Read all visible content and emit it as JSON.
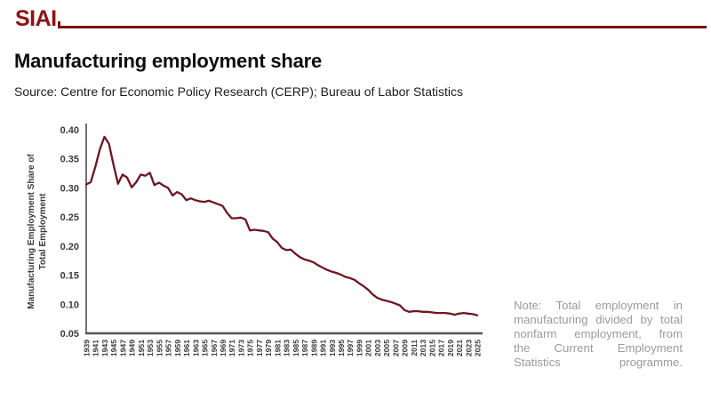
{
  "header": {
    "logo_text": "SIAI",
    "brand_color": "#8e1313",
    "rule_color": "#7a1111"
  },
  "title": "Manufacturing employment share",
  "source": "Source: Centre for Economic Policy Research (CERP); Bureau of Labor Statistics",
  "note": {
    "color": "#9b9b9b",
    "lines": [
      "Note: Total employment in",
      "manufacturing divided by total",
      "nonfarm employment, from",
      "the Current Employment",
      "Statistics programme."
    ]
  },
  "chart_data": {
    "type": "line",
    "title": "",
    "xlabel": "",
    "ylabel": "Manufacturing Employment Share of Total Employment",
    "ylabel_lines": [
      "Manufacturing Employment Share of",
      "Total Employment"
    ],
    "line_color": "#6e1622",
    "axis_color": "#4d4d4d",
    "grid": false,
    "legend": "none",
    "x_range": [
      1939,
      2025
    ],
    "ylim": [
      0.05,
      0.4
    ],
    "yticks": [
      "0.40",
      "0.35",
      "0.30",
      "0.25",
      "0.20",
      "0.15",
      "0.10",
      "0.05"
    ],
    "xticks": [
      1939,
      1941,
      1943,
      1945,
      1947,
      1949,
      1951,
      1953,
      1955,
      1957,
      1959,
      1961,
      1963,
      1965,
      1967,
      1969,
      1971,
      1973,
      1975,
      1977,
      1979,
      1981,
      1983,
      1985,
      1987,
      1989,
      1991,
      1993,
      1995,
      1997,
      1999,
      2001,
      2003,
      2005,
      2007,
      2009,
      2011,
      2013,
      2015,
      2017,
      2019,
      2021,
      2023,
      2025
    ],
    "x": [
      1939,
      1940,
      1941,
      1942,
      1943,
      1944,
      1945,
      1946,
      1947,
      1948,
      1949,
      1950,
      1951,
      1952,
      1953,
      1954,
      1955,
      1956,
      1957,
      1958,
      1959,
      1960,
      1961,
      1962,
      1963,
      1964,
      1965,
      1966,
      1967,
      1968,
      1969,
      1970,
      1971,
      1972,
      1973,
      1974,
      1975,
      1976,
      1977,
      1978,
      1979,
      1980,
      1981,
      1982,
      1983,
      1984,
      1985,
      1986,
      1987,
      1988,
      1989,
      1990,
      1991,
      1992,
      1993,
      1994,
      1995,
      1996,
      1997,
      1998,
      1999,
      2000,
      2001,
      2002,
      2003,
      2004,
      2005,
      2006,
      2007,
      2008,
      2009,
      2010,
      2011,
      2012,
      2013,
      2014,
      2015,
      2016,
      2017,
      2018,
      2019,
      2020,
      2021,
      2022,
      2023,
      2024,
      2025
    ],
    "values": [
      0.306,
      0.31,
      0.336,
      0.366,
      0.388,
      0.376,
      0.34,
      0.307,
      0.323,
      0.318,
      0.301,
      0.31,
      0.323,
      0.321,
      0.326,
      0.305,
      0.309,
      0.304,
      0.3,
      0.287,
      0.293,
      0.289,
      0.279,
      0.282,
      0.279,
      0.277,
      0.276,
      0.278,
      0.275,
      0.272,
      0.269,
      0.257,
      0.248,
      0.248,
      0.249,
      0.246,
      0.227,
      0.228,
      0.227,
      0.226,
      0.224,
      0.213,
      0.207,
      0.197,
      0.193,
      0.194,
      0.187,
      0.181,
      0.177,
      0.175,
      0.172,
      0.167,
      0.163,
      0.159,
      0.156,
      0.154,
      0.151,
      0.147,
      0.145,
      0.142,
      0.136,
      0.131,
      0.125,
      0.117,
      0.111,
      0.108,
      0.106,
      0.104,
      0.101,
      0.098,
      0.09,
      0.087,
      0.088,
      0.088,
      0.087,
      0.087,
      0.086,
      0.085,
      0.085,
      0.085,
      0.084,
      0.082,
      0.084,
      0.085,
      0.084,
      0.083,
      0.081
    ]
  }
}
